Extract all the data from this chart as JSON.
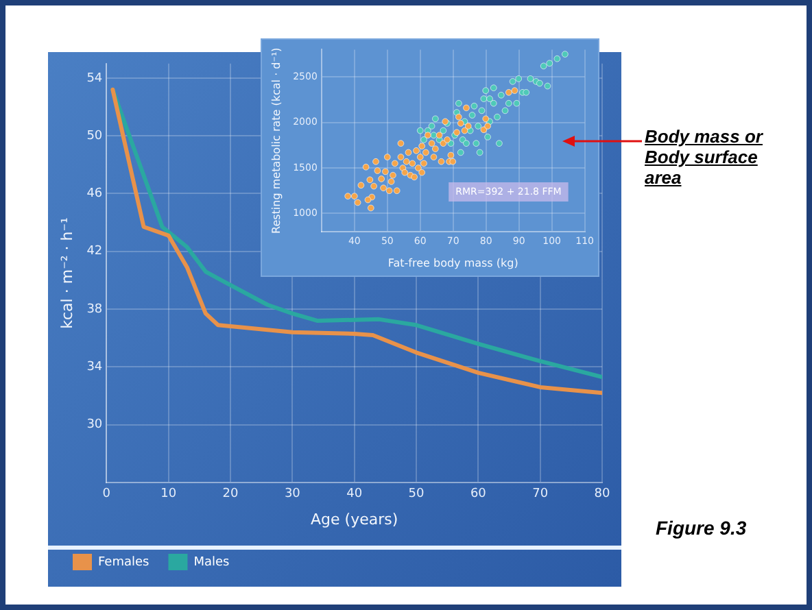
{
  "chart_data": [
    {
      "type": "line",
      "xlabel": "Age (years)",
      "ylabel": "kcal · m⁻² · h⁻¹",
      "xlim": [
        0,
        80
      ],
      "xticks": [
        0,
        10,
        20,
        30,
        40,
        50,
        60,
        70,
        80
      ],
      "ylim": [
        26,
        55
      ],
      "yticks": [
        30,
        34,
        38,
        42,
        46,
        50,
        54
      ],
      "grid": true,
      "legend": "bottom left",
      "marker": "none",
      "line_style": "solid",
      "annotations": [
        "Figure 9.3"
      ],
      "series": [
        {
          "name": "Females",
          "color": "#e8924a",
          "x": [
            1,
            6,
            10,
            13,
            16,
            18,
            30,
            40,
            43,
            50,
            60,
            70,
            80
          ],
          "values": [
            53.2,
            43.7,
            43.1,
            40.9,
            37.7,
            36.9,
            36.4,
            36.3,
            36.2,
            35.0,
            33.6,
            32.6,
            32.2
          ]
        },
        {
          "name": "Males",
          "color": "#2aa8a0",
          "x": [
            1,
            9,
            13,
            16,
            19,
            26,
            30,
            34,
            44,
            50,
            60,
            70,
            80
          ],
          "values": [
            53.2,
            43.7,
            42.3,
            40.6,
            39.9,
            38.3,
            37.7,
            37.2,
            37.3,
            36.9,
            35.6,
            34.4,
            33.3
          ]
        }
      ]
    },
    {
      "type": "scatter",
      "xlabel": "Fat-free body mass (kg)",
      "ylabel": "Resting metabolic rate (kcal · d⁻¹)",
      "xlim": [
        30,
        110
      ],
      "xticks": [
        40,
        50,
        60,
        70,
        80,
        90,
        100,
        110
      ],
      "ylim": [
        800,
        2800
      ],
      "yticks": [
        1000,
        1500,
        2000,
        2500
      ],
      "grid": true,
      "marker": "circle",
      "annotations": [
        "RMR=392 + 21.8 FFM",
        "Body mass or Body surface area"
      ],
      "series": [
        {
          "color": "#f5a54a",
          "x": [
            38,
            40,
            41,
            45,
            42,
            43.5,
            44.7,
            45.9,
            45.3,
            46.5,
            48.2,
            49.4,
            50,
            50.6,
            51.7,
            52.3,
            52.9,
            54.1,
            54.1,
            54.7,
            55.8,
            56.4,
            57,
            57.6,
            58.8,
            59.4,
            60,
            60.5,
            61.1,
            61.7,
            62.3,
            63.5,
            64.1,
            64.6,
            65.8,
            66.4,
            67,
            67.6,
            68.2,
            68.8,
            69.3,
            69.9,
            71.1,
            71.7,
            72.3,
            73.5,
            74,
            74.6,
            79.3,
            79.9,
            80.5,
            86.9,
            88.7,
            44.1,
            47,
            48.8,
            51.2,
            55.3,
            58.2,
            60.5
          ],
          "values": [
            1190,
            1190,
            1120,
            1060,
            1310,
            1510,
            1370,
            1300,
            1180,
            1570,
            1380,
            1460,
            1620,
            1250,
            1420,
            1550,
            1250,
            1620,
            1770,
            1500,
            1570,
            1670,
            1420,
            1550,
            1690,
            1500,
            1620,
            1740,
            1550,
            1670,
            1860,
            1770,
            1620,
            1710,
            1860,
            1570,
            1770,
            2010,
            1810,
            1570,
            1640,
            1570,
            1890,
            2060,
            1990,
            1910,
            2160,
            1960,
            1920,
            2040,
            1960,
            2330,
            2350,
            1150,
            1470,
            1280,
            1350,
            1450,
            1400,
            1450
          ]
        },
        {
          "color": "#4fc9b8",
          "x": [
            61.1,
            62.3,
            63.5,
            64.6,
            65.8,
            67,
            68.2,
            69.3,
            70.5,
            71.1,
            71.7,
            72.9,
            73.5,
            74,
            75.2,
            75.8,
            76.4,
            77.6,
            78.1,
            78.7,
            79.3,
            80.5,
            81.1,
            82.3,
            83.4,
            84,
            84.6,
            85.8,
            86.9,
            88.1,
            89.3,
            89.9,
            91.1,
            92.2,
            95.2,
            96.3,
            98.7,
            97.5,
            99.3,
            101.6,
            104,
            93.5,
            77,
            72.3,
            67.6,
            64.1,
            60,
            81.1,
            82.3,
            79.9
          ],
          "values": [
            1810,
            1910,
            1960,
            2040,
            1810,
            1910,
            1990,
            1770,
            1860,
            2110,
            2210,
            1810,
            2010,
            1770,
            1910,
            2080,
            2180,
            1960,
            1670,
            2130,
            2260,
            1840,
            2010,
            2210,
            2060,
            1770,
            2300,
            2130,
            2210,
            2450,
            2210,
            2480,
            2330,
            2330,
            2450,
            2430,
            2400,
            2620,
            2650,
            2700,
            2750,
            2480,
            1770,
            1670,
            null,
            1860,
            1910,
            2260,
            2380,
            2350
          ]
        }
      ]
    }
  ]
}
